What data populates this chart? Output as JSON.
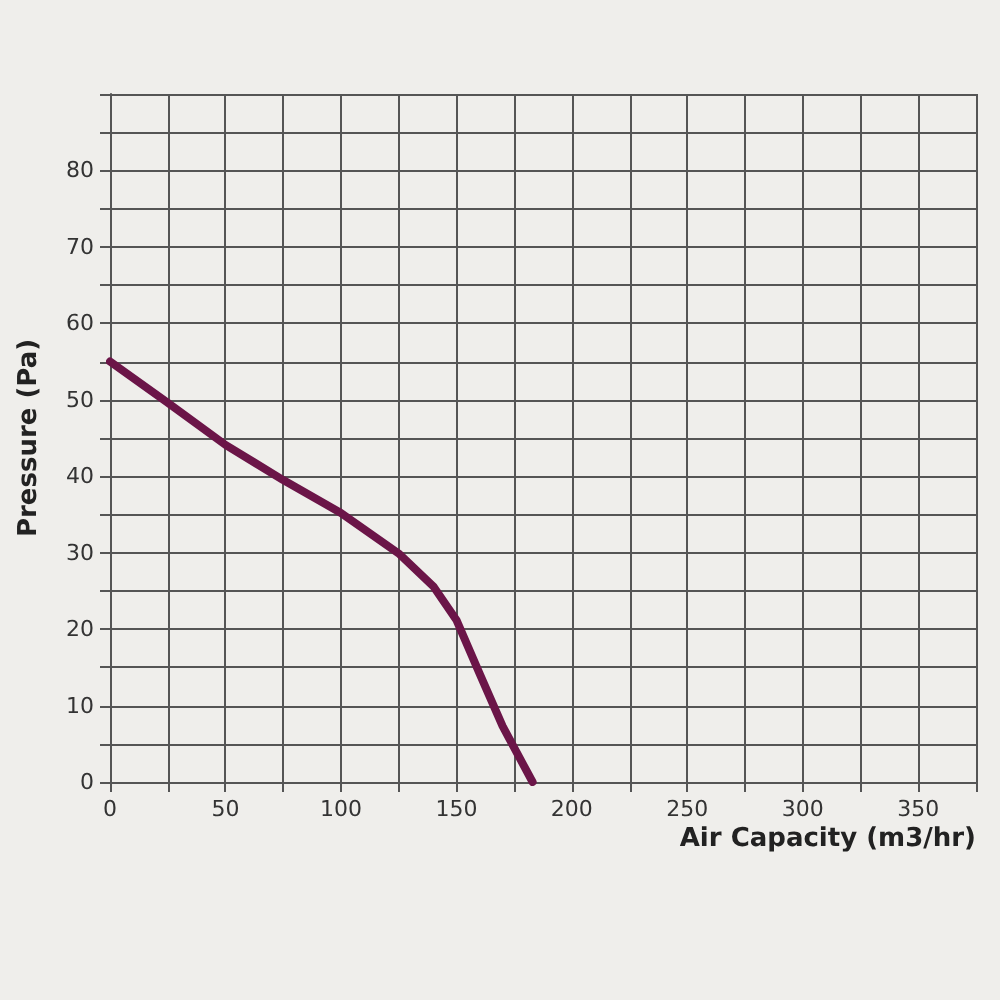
{
  "chart_data": {
    "type": "line",
    "xlabel": "Air Capacity (m3/hr)",
    "ylabel": "Pressure (Pa)",
    "x": [
      0,
      25,
      50,
      75,
      100,
      125,
      140,
      150,
      160,
      170,
      183
    ],
    "series": [
      {
        "color": "#6b1548",
        "values": [
          55,
          49.6,
          44.1,
          39.5,
          35.2,
          29.9,
          25.6,
          21.2,
          14.2,
          7.3,
          0
        ]
      }
    ],
    "xlim": [
      0,
      375
    ],
    "ylim": [
      0,
      90
    ],
    "xticks": [
      0,
      {
        "value": 25,
        "label": null
      },
      50,
      {
        "value": 75,
        "label": null
      },
      100,
      {
        "value": 125,
        "label": null
      },
      150,
      {
        "value": 175,
        "label": null
      },
      200,
      {
        "value": 225,
        "label": null
      },
      250,
      {
        "value": 275,
        "label": null
      },
      300,
      {
        "value": 325,
        "label": null
      },
      350,
      {
        "value": 375,
        "label": null
      }
    ],
    "yticks": [
      0,
      {
        "value": 5,
        "label": null
      },
      10,
      {
        "value": 15,
        "label": null
      },
      20,
      {
        "value": 25,
        "label": null
      },
      30,
      {
        "value": 35,
        "label": null
      },
      40,
      {
        "value": 45,
        "label": null
      },
      50,
      {
        "value": 55,
        "label": null
      },
      60,
      {
        "value": 65,
        "label": null
      },
      70,
      {
        "value": 75,
        "label": null
      },
      80,
      {
        "value": 85,
        "label": null
      },
      {
        "value": 90,
        "label": null
      }
    ],
    "grid": true,
    "marker": "none",
    "line_style": "solid"
  }
}
